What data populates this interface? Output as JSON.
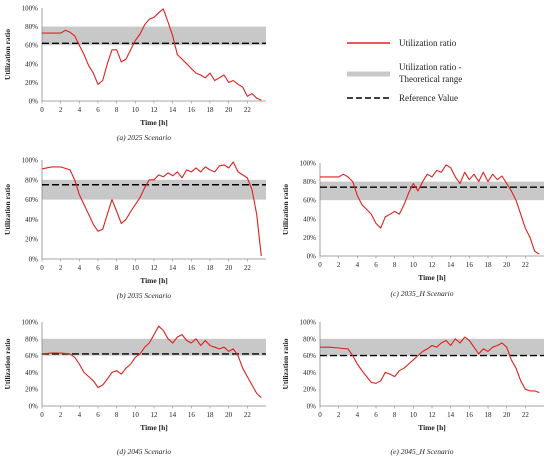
{
  "legend": {
    "items": [
      {
        "label": "Utilization ratio",
        "color": "#e02020",
        "style": "line"
      },
      {
        "label": "Utilization ratio -",
        "label2": "Theoretical range",
        "color": "#c8c8c8",
        "style": "band"
      },
      {
        "label": "Reference Value",
        "color": "#000000",
        "style": "dashed"
      }
    ]
  },
  "chart_data": [
    {
      "type": "line",
      "caption": "(a) 2025 Scenario",
      "xlabel": "Time [h]",
      "ylabel": "Utilization ratio",
      "xlim": [
        0,
        24
      ],
      "ylim": [
        0,
        100
      ],
      "xticks": [
        0,
        2,
        4,
        6,
        8,
        10,
        12,
        14,
        16,
        18,
        20,
        22
      ],
      "yticks": [
        0,
        20,
        40,
        60,
        80,
        100
      ],
      "ytick_suffix": "%",
      "band": [
        60,
        80
      ],
      "reference": 62,
      "series": [
        {
          "values": [
            [
              0,
              73
            ],
            [
              1,
              73
            ],
            [
              2,
              73
            ],
            [
              2.5,
              76
            ],
            [
              3,
              74
            ],
            [
              3.5,
              70
            ],
            [
              4,
              60
            ],
            [
              4.5,
              50
            ],
            [
              5,
              38
            ],
            [
              5.5,
              30
            ],
            [
              6,
              18
            ],
            [
              6.5,
              22
            ],
            [
              7,
              40
            ],
            [
              7.5,
              55
            ],
            [
              8,
              55
            ],
            [
              8.5,
              42
            ],
            [
              9,
              45
            ],
            [
              9.5,
              55
            ],
            [
              10,
              65
            ],
            [
              10.5,
              72
            ],
            [
              11,
              82
            ],
            [
              11.5,
              88
            ],
            [
              12,
              90
            ],
            [
              12.5,
              95
            ],
            [
              13,
              99
            ],
            [
              13.5,
              85
            ],
            [
              14,
              70
            ],
            [
              14.5,
              50
            ],
            [
              15,
              45
            ],
            [
              15.5,
              40
            ],
            [
              16,
              35
            ],
            [
              16.5,
              30
            ],
            [
              17,
              28
            ],
            [
              17.5,
              25
            ],
            [
              18,
              30
            ],
            [
              18.5,
              22
            ],
            [
              19,
              25
            ],
            [
              19.5,
              28
            ],
            [
              20,
              20
            ],
            [
              20.5,
              22
            ],
            [
              21,
              18
            ],
            [
              21.5,
              15
            ],
            [
              22,
              5
            ],
            [
              22.5,
              8
            ],
            [
              23,
              3
            ],
            [
              23.5,
              1
            ]
          ]
        }
      ]
    },
    {
      "type": "line",
      "caption": "(b) 2035 Scenario",
      "xlabel": "Time [h]",
      "ylabel": "Utilization ratio",
      "xlim": [
        0,
        24
      ],
      "ylim": [
        0,
        100
      ],
      "xticks": [
        0,
        2,
        4,
        6,
        8,
        10,
        12,
        14,
        16,
        18,
        20,
        22
      ],
      "yticks": [
        0,
        20,
        40,
        60,
        80,
        100
      ],
      "ytick_suffix": "%",
      "band": [
        60,
        80
      ],
      "reference": 75,
      "series": [
        {
          "values": [
            [
              0,
              91
            ],
            [
              1,
              93
            ],
            [
              2,
              93
            ],
            [
              3,
              90
            ],
            [
              3.5,
              80
            ],
            [
              4,
              65
            ],
            [
              4.5,
              55
            ],
            [
              5,
              45
            ],
            [
              5.5,
              35
            ],
            [
              6,
              28
            ],
            [
              6.5,
              30
            ],
            [
              7,
              45
            ],
            [
              7.5,
              60
            ],
            [
              8,
              48
            ],
            [
              8.5,
              36
            ],
            [
              9,
              40
            ],
            [
              9.5,
              48
            ],
            [
              10,
              55
            ],
            [
              10.5,
              62
            ],
            [
              11,
              72
            ],
            [
              11.5,
              80
            ],
            [
              12,
              80
            ],
            [
              12.5,
              85
            ],
            [
              13,
              83
            ],
            [
              13.5,
              87
            ],
            [
              14,
              84
            ],
            [
              14.5,
              88
            ],
            [
              15,
              82
            ],
            [
              15.5,
              90
            ],
            [
              16,
              88
            ],
            [
              16.5,
              92
            ],
            [
              17,
              88
            ],
            [
              17.5,
              93
            ],
            [
              18,
              90
            ],
            [
              18.5,
              88
            ],
            [
              19,
              94
            ],
            [
              19.5,
              95
            ],
            [
              20,
              92
            ],
            [
              20.5,
              98
            ],
            [
              21,
              88
            ],
            [
              21.5,
              85
            ],
            [
              22,
              82
            ],
            [
              22.5,
              70
            ],
            [
              23,
              45
            ],
            [
              23.5,
              3
            ]
          ]
        }
      ]
    },
    {
      "type": "line",
      "caption": "(c) 2035_H Scenario",
      "xlabel": "Time [h]",
      "ylabel": "Utilization ratio",
      "xlim": [
        0,
        24
      ],
      "ylim": [
        0,
        100
      ],
      "xticks": [
        0,
        2,
        4,
        6,
        8,
        10,
        12,
        14,
        16,
        18,
        20,
        22
      ],
      "yticks": [
        0,
        20,
        40,
        60,
        80,
        100
      ],
      "ytick_suffix": "%",
      "band": [
        60,
        80
      ],
      "reference": 74,
      "series": [
        {
          "values": [
            [
              0,
              85
            ],
            [
              1,
              85
            ],
            [
              2,
              85
            ],
            [
              2.5,
              88
            ],
            [
              3,
              85
            ],
            [
              3.5,
              80
            ],
            [
              4,
              65
            ],
            [
              4.5,
              55
            ],
            [
              5,
              50
            ],
            [
              5.5,
              45
            ],
            [
              6,
              35
            ],
            [
              6.5,
              30
            ],
            [
              7,
              42
            ],
            [
              7.5,
              45
            ],
            [
              8,
              48
            ],
            [
              8.5,
              45
            ],
            [
              9,
              55
            ],
            [
              9.5,
              68
            ],
            [
              10,
              78
            ],
            [
              10.5,
              70
            ],
            [
              11,
              80
            ],
            [
              11.5,
              88
            ],
            [
              12,
              85
            ],
            [
              12.5,
              92
            ],
            [
              13,
              90
            ],
            [
              13.5,
              98
            ],
            [
              14,
              95
            ],
            [
              14.5,
              85
            ],
            [
              15,
              78
            ],
            [
              15.5,
              90
            ],
            [
              16,
              82
            ],
            [
              16.5,
              88
            ],
            [
              17,
              80
            ],
            [
              17.5,
              90
            ],
            [
              18,
              80
            ],
            [
              18.5,
              88
            ],
            [
              19,
              82
            ],
            [
              19.5,
              86
            ],
            [
              20,
              78
            ],
            [
              20.5,
              70
            ],
            [
              21,
              60
            ],
            [
              21.5,
              45
            ],
            [
              22,
              30
            ],
            [
              22.5,
              20
            ],
            [
              23,
              5
            ],
            [
              23.5,
              2
            ]
          ]
        }
      ]
    },
    {
      "type": "line",
      "caption": "(d) 2045 Scenario",
      "xlabel": "Time [h]",
      "ylabel": "Utilization ratio",
      "xlim": [
        0,
        24
      ],
      "ylim": [
        0,
        100
      ],
      "xticks": [
        0,
        2,
        4,
        6,
        8,
        10,
        12,
        14,
        16,
        18,
        20,
        22
      ],
      "yticks": [
        0,
        20,
        40,
        60,
        80,
        100
      ],
      "ytick_suffix": "%",
      "band": [
        60,
        80
      ],
      "reference": 62,
      "series": [
        {
          "values": [
            [
              0,
              62
            ],
            [
              1,
              63
            ],
            [
              2,
              63
            ],
            [
              3,
              62
            ],
            [
              3.5,
              58
            ],
            [
              4,
              50
            ],
            [
              4.5,
              40
            ],
            [
              5,
              35
            ],
            [
              5.5,
              30
            ],
            [
              6,
              22
            ],
            [
              6.5,
              25
            ],
            [
              7,
              32
            ],
            [
              7.5,
              40
            ],
            [
              8,
              42
            ],
            [
              8.5,
              38
            ],
            [
              9,
              45
            ],
            [
              9.5,
              50
            ],
            [
              10,
              58
            ],
            [
              10.5,
              62
            ],
            [
              11,
              70
            ],
            [
              11.5,
              75
            ],
            [
              12,
              85
            ],
            [
              12.5,
              95
            ],
            [
              13,
              90
            ],
            [
              13.5,
              80
            ],
            [
              14,
              75
            ],
            [
              14.5,
              82
            ],
            [
              15,
              85
            ],
            [
              15.5,
              78
            ],
            [
              16,
              75
            ],
            [
              16.5,
              80
            ],
            [
              17,
              72
            ],
            [
              17.5,
              78
            ],
            [
              18,
              72
            ],
            [
              18.5,
              70
            ],
            [
              19,
              68
            ],
            [
              19.5,
              70
            ],
            [
              20,
              65
            ],
            [
              20.5,
              68
            ],
            [
              21,
              60
            ],
            [
              21.5,
              45
            ],
            [
              22,
              35
            ],
            [
              22.5,
              25
            ],
            [
              23,
              15
            ],
            [
              23.5,
              10
            ]
          ]
        }
      ]
    },
    {
      "type": "line",
      "caption": "(e) 2045_H Scenario",
      "xlabel": "Time [h]",
      "ylabel": "Utilization ratio",
      "xlim": [
        0,
        24
      ],
      "ylim": [
        0,
        100
      ],
      "xticks": [
        0,
        2,
        4,
        6,
        8,
        10,
        12,
        14,
        16,
        18,
        20,
        22
      ],
      "yticks": [
        0,
        20,
        40,
        60,
        80,
        100
      ],
      "ytick_suffix": "%",
      "band": [
        60,
        80
      ],
      "reference": 60,
      "series": [
        {
          "values": [
            [
              0,
              70
            ],
            [
              1,
              70
            ],
            [
              2,
              69
            ],
            [
              3,
              68
            ],
            [
              3.5,
              60
            ],
            [
              4,
              50
            ],
            [
              4.5,
              42
            ],
            [
              5,
              35
            ],
            [
              5.5,
              28
            ],
            [
              6,
              27
            ],
            [
              6.5,
              30
            ],
            [
              7,
              40
            ],
            [
              7.5,
              38
            ],
            [
              8,
              35
            ],
            [
              8.5,
              42
            ],
            [
              9,
              45
            ],
            [
              9.5,
              50
            ],
            [
              10,
              55
            ],
            [
              10.5,
              60
            ],
            [
              11,
              65
            ],
            [
              11.5,
              68
            ],
            [
              12,
              72
            ],
            [
              12.5,
              70
            ],
            [
              13,
              75
            ],
            [
              13.5,
              78
            ],
            [
              14,
              72
            ],
            [
              14.5,
              80
            ],
            [
              15,
              75
            ],
            [
              15.5,
              82
            ],
            [
              16,
              78
            ],
            [
              16.5,
              70
            ],
            [
              17,
              62
            ],
            [
              17.5,
              68
            ],
            [
              18,
              65
            ],
            [
              18.5,
              70
            ],
            [
              19,
              72
            ],
            [
              19.5,
              75
            ],
            [
              20,
              70
            ],
            [
              20.5,
              55
            ],
            [
              21,
              45
            ],
            [
              21.5,
              30
            ],
            [
              22,
              20
            ],
            [
              22.5,
              18
            ],
            [
              23,
              18
            ],
            [
              23.5,
              16
            ]
          ]
        }
      ]
    }
  ]
}
